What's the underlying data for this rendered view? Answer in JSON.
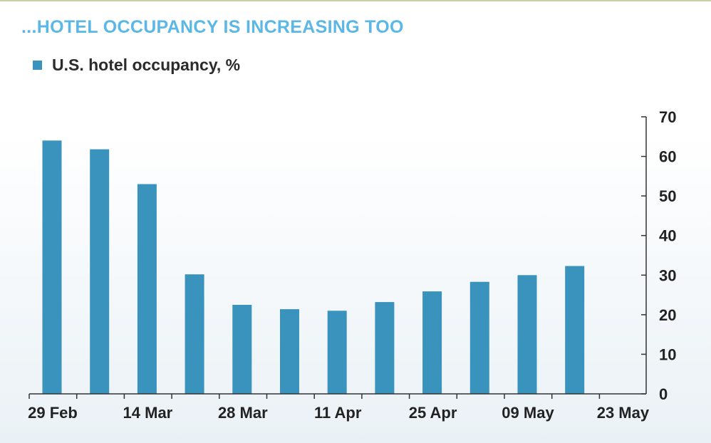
{
  "title": "...HOTEL OCCUPANCY IS INCREASING TOO",
  "legend": {
    "label": "U.S. hotel occupancy, %"
  },
  "colors": {
    "bar": "#3a93bc",
    "title": "#5bb8e6",
    "axis": "#333333"
  },
  "chart_data": {
    "type": "bar",
    "title": "...HOTEL OCCUPANCY IS INCREASING TOO",
    "series": [
      {
        "name": "U.S. hotel occupancy, %",
        "x": [
          "2020-02-29",
          "2020-03-07",
          "2020-03-14",
          "2020-03-21",
          "2020-03-28",
          "2020-04-04",
          "2020-04-11",
          "2020-04-18",
          "2020-04-25",
          "2020-05-02",
          "2020-05-09",
          "2020-05-16"
        ],
        "values": [
          64.0,
          61.8,
          53.0,
          30.2,
          22.5,
          21.4,
          21.0,
          23.2,
          25.9,
          28.3,
          30.0,
          32.3
        ]
      }
    ],
    "x_tick_labels": [
      "29 Feb",
      "14 Mar",
      "28 Mar",
      "11 Apr",
      "25 Apr",
      "09 May",
      "23 May"
    ],
    "y_ticks": [
      0,
      10,
      20,
      30,
      40,
      50,
      60,
      70
    ],
    "ylim": [
      0,
      70
    ],
    "y_axis_side": "right",
    "xlabel": "",
    "ylabel": "",
    "grid": false,
    "legend_position": "top-left"
  }
}
